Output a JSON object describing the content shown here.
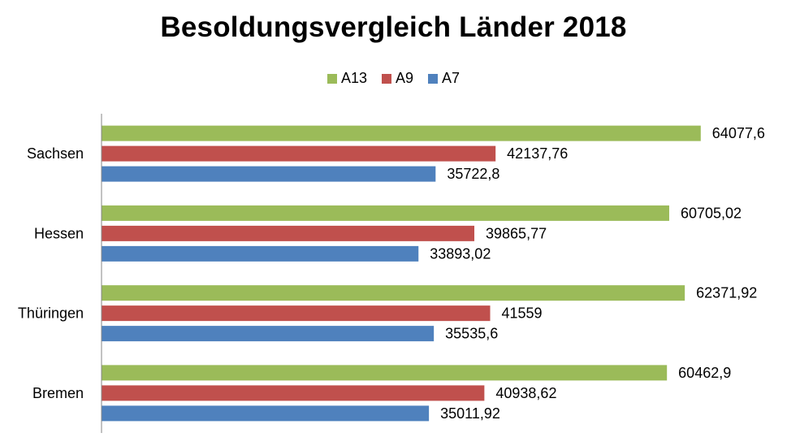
{
  "chart_data": {
    "type": "bar",
    "orientation": "horizontal",
    "title": "Besoldungsvergleich Länder 2018",
    "xlabel": "",
    "ylabel": "",
    "categories": [
      "Sachsen",
      "Hessen",
      "Thüringen",
      "Bremen"
    ],
    "series": [
      {
        "name": "A13",
        "color": "#9BBB59",
        "values": [
          64077.6,
          60705.02,
          62371.92,
          60462.9
        ],
        "labels": [
          "64077,6",
          "60705,02",
          "62371,92",
          "60462,9"
        ]
      },
      {
        "name": "A9",
        "color": "#C0504D",
        "values": [
          42137.76,
          39865.77,
          41559,
          40938.62
        ],
        "labels": [
          "42137,76",
          "39865,77",
          "41559",
          "40938,62"
        ]
      },
      {
        "name": "A7",
        "color": "#4F81BD",
        "values": [
          35722.8,
          33893.02,
          35535.6,
          35011.92
        ],
        "labels": [
          "35722,8",
          "33893,02",
          "35535,6",
          "35011,92"
        ]
      }
    ],
    "xlim": [
      0,
      70000
    ],
    "grid": false,
    "legend_position": "top-center",
    "value_axis_visible": false
  }
}
